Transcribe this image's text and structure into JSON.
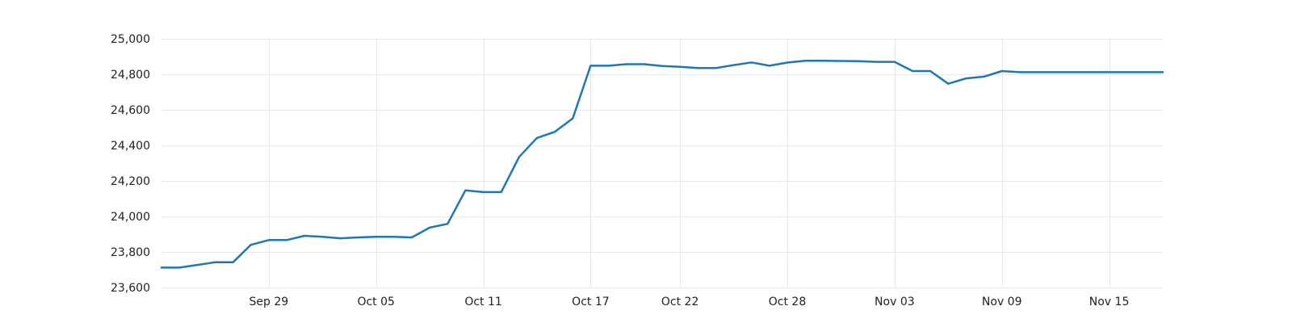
{
  "chart_data": {
    "type": "line",
    "title": "",
    "xlabel": "",
    "ylabel": "",
    "grid": true,
    "legend": "none",
    "color": "#1f77b4",
    "grid_color": "#e8e8e8",
    "xlim": [
      "2024-09-23",
      "2024-11-18"
    ],
    "ylim": [
      23600,
      25000
    ],
    "x_ticks": [
      "2024-09-29",
      "2024-10-05",
      "2024-10-11",
      "2024-10-17",
      "2024-10-22",
      "2024-10-28",
      "2024-11-03",
      "2024-11-09",
      "2024-11-15"
    ],
    "x_tick_labels": [
      "Sep 29",
      "Oct 05",
      "Oct 11",
      "Oct 17",
      "Oct 22",
      "Oct 28",
      "Nov 03",
      "Nov 09",
      "Nov 15"
    ],
    "y_ticks": [
      23600,
      23800,
      24000,
      24200,
      24400,
      24600,
      24800,
      25000
    ],
    "y_tick_labels": [
      "23,600",
      "23,800",
      "24,000",
      "24,200",
      "24,400",
      "24,600",
      "24,800",
      "25,000"
    ],
    "series": [
      {
        "x": [
          "2024-09-23",
          "2024-09-24",
          "2024-09-25",
          "2024-09-26",
          "2024-09-27",
          "2024-09-28",
          "2024-09-29",
          "2024-09-30",
          "2024-10-01",
          "2024-10-02",
          "2024-10-03",
          "2024-10-04",
          "2024-10-05",
          "2024-10-06",
          "2024-10-07",
          "2024-10-08",
          "2024-10-09",
          "2024-10-10",
          "2024-10-11",
          "2024-10-12",
          "2024-10-13",
          "2024-10-14",
          "2024-10-15",
          "2024-10-16",
          "2024-10-17",
          "2024-10-18",
          "2024-10-19",
          "2024-10-20",
          "2024-10-21",
          "2024-10-22",
          "2024-10-23",
          "2024-10-24",
          "2024-10-25",
          "2024-10-26",
          "2024-10-27",
          "2024-10-28",
          "2024-10-29",
          "2024-10-30",
          "2024-10-31",
          "2024-11-01",
          "2024-11-02",
          "2024-11-03",
          "2024-11-04",
          "2024-11-05",
          "2024-11-06",
          "2024-11-07",
          "2024-11-08",
          "2024-11-09",
          "2024-11-10",
          "2024-11-11",
          "2024-11-12",
          "2024-11-13",
          "2024-11-14",
          "2024-11-15",
          "2024-11-16",
          "2024-11-17",
          "2024-11-18"
        ],
        "values": [
          23712,
          23712,
          23727,
          23742,
          23742,
          23840,
          23867,
          23867,
          23891,
          23885,
          23877,
          23882,
          23885,
          23885,
          23882,
          23937,
          23958,
          24147,
          24137,
          24137,
          24335,
          24442,
          24476,
          24552,
          24848,
          24848,
          24857,
          24857,
          24847,
          24842,
          24835,
          24835,
          24852,
          24867,
          24848,
          24866,
          24876,
          24876,
          24875,
          24874,
          24870,
          24870,
          24818,
          24818,
          24747,
          24777,
          24787,
          24818,
          24812,
          24812,
          24812,
          24812,
          24812,
          24812,
          24812,
          24812,
          24812
        ]
      }
    ]
  }
}
